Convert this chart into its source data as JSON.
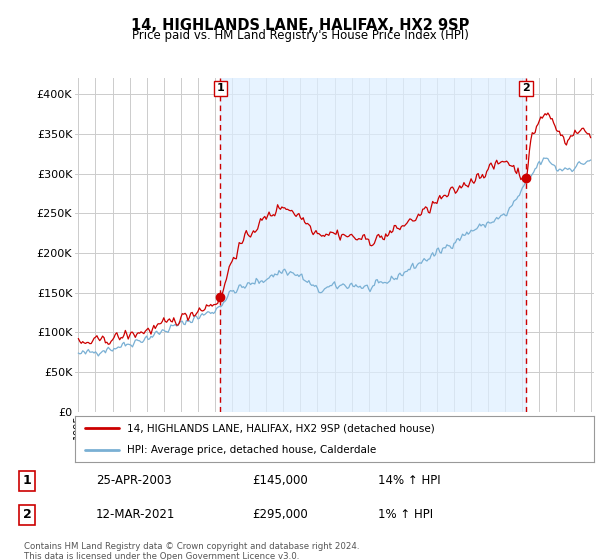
{
  "title": "14, HIGHLANDS LANE, HALIFAX, HX2 9SP",
  "subtitle": "Price paid vs. HM Land Registry's House Price Index (HPI)",
  "legend_entry1": "14, HIGHLANDS LANE, HALIFAX, HX2 9SP (detached house)",
  "legend_entry2": "HPI: Average price, detached house, Calderdale",
  "footnote": "Contains HM Land Registry data © Crown copyright and database right 2024.\nThis data is licensed under the Open Government Licence v3.0.",
  "sale1_label": "1",
  "sale1_date": "25-APR-2003",
  "sale1_price": "£145,000",
  "sale1_hpi": "14% ↑ HPI",
  "sale2_label": "2",
  "sale2_date": "12-MAR-2021",
  "sale2_price": "£295,000",
  "sale2_hpi": "1% ↑ HPI",
  "hpi_color": "#7ab0d4",
  "price_color": "#cc0000",
  "sale_vline_color": "#cc0000",
  "background_color": "#ffffff",
  "grid_color": "#cccccc",
  "shade_color": "#ddeeff",
  "ylim": [
    0,
    420000
  ],
  "yticks": [
    0,
    50000,
    100000,
    150000,
    200000,
    250000,
    300000,
    350000,
    400000
  ],
  "ytick_labels": [
    "£0",
    "£50K",
    "£100K",
    "£150K",
    "£200K",
    "£250K",
    "£300K",
    "£350K",
    "£400K"
  ],
  "x_start_year": 1995,
  "x_end_year": 2025,
  "sale1_year": 2003.32,
  "sale2_year": 2021.22,
  "sale1_price_val": 145000,
  "sale2_price_val": 295000
}
